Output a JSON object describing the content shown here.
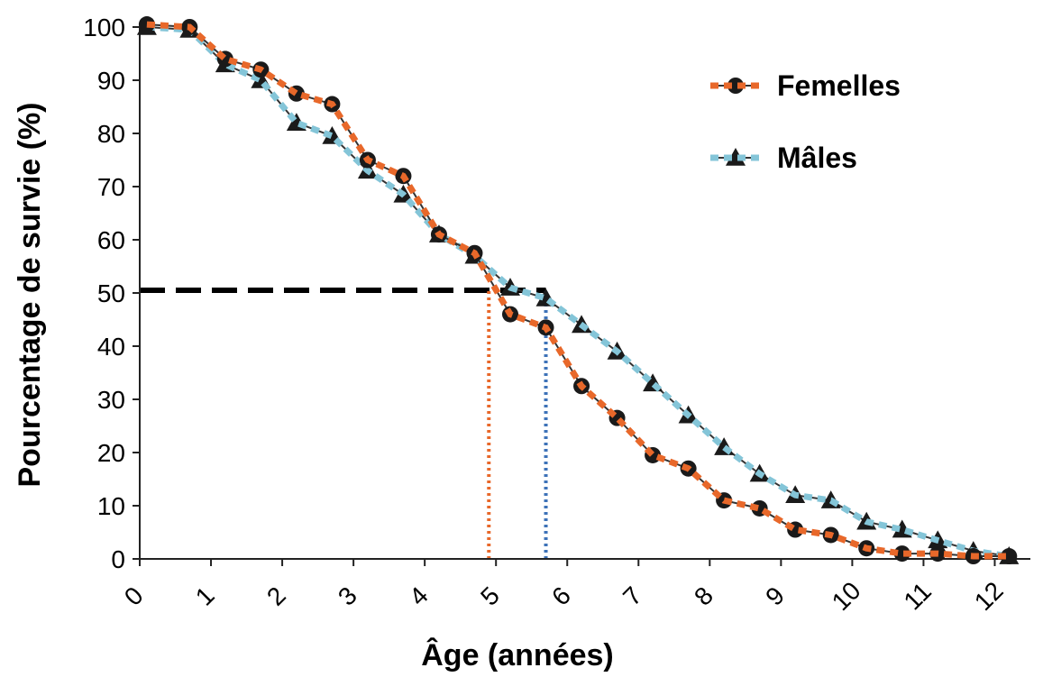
{
  "chart_data": {
    "type": "line",
    "xlabel": "Âge (années)",
    "ylabel": "Pourcentage de survie (%)",
    "xlim": [
      0,
      12.5
    ],
    "ylim": [
      0,
      100
    ],
    "x_ticks": [
      "0",
      "1",
      "2",
      "3",
      "4",
      "5",
      "6",
      "7",
      "8",
      "9",
      "10",
      "11",
      "12"
    ],
    "y_ticks": [
      "0",
      "10",
      "20",
      "30",
      "40",
      "50",
      "60",
      "70",
      "80",
      "90",
      "100"
    ],
    "legend_position": "top-right",
    "grid": false,
    "series": [
      {
        "name": "Femelles",
        "color": "#e8682a",
        "marker": "circle",
        "x": [
          0.1,
          0.7,
          1.2,
          1.7,
          2.2,
          2.7,
          3.2,
          3.7,
          4.2,
          4.7,
          5.2,
          5.7,
          6.2,
          6.7,
          7.2,
          7.7,
          8.2,
          8.7,
          9.2,
          9.7,
          10.2,
          10.7,
          11.2,
          11.7,
          12.2
        ],
        "values": [
          100.5,
          100,
          94,
          92,
          87.5,
          85.5,
          75,
          72,
          61,
          57.5,
          46,
          43.5,
          32.5,
          26.5,
          19.5,
          17,
          11,
          9.5,
          5.5,
          4.5,
          2,
          1,
          1,
          0.5,
          0.5
        ]
      },
      {
        "name": "Mâles",
        "color": "#84c5d8",
        "marker": "triangle",
        "x": [
          0.1,
          0.7,
          1.2,
          1.7,
          2.2,
          2.7,
          3.2,
          3.7,
          4.2,
          4.7,
          5.2,
          5.7,
          6.2,
          6.7,
          7.2,
          7.7,
          8.2,
          8.7,
          9.2,
          9.7,
          10.2,
          10.7,
          11.2,
          11.7,
          12.2
        ],
        "values": [
          100,
          99.5,
          93,
          90,
          82,
          79.5,
          73,
          68.5,
          61,
          57,
          51,
          49,
          44,
          39,
          33,
          27,
          21,
          16,
          12,
          11,
          7,
          5.5,
          3.5,
          1.5,
          0.5
        ]
      }
    ],
    "annotations": [
      {
        "kind": "horizontal-dashed",
        "color": "#000000",
        "y": 50.5,
        "x_from": 0,
        "x_to": 5.7
      },
      {
        "kind": "vertical-dotted",
        "color": "#e8682a",
        "x": 4.9,
        "y_from": 0,
        "y_to": 50.5
      },
      {
        "kind": "vertical-dotted",
        "color": "#3d72b8",
        "x": 5.7,
        "y_from": 0,
        "y_to": 50.5
      }
    ]
  }
}
